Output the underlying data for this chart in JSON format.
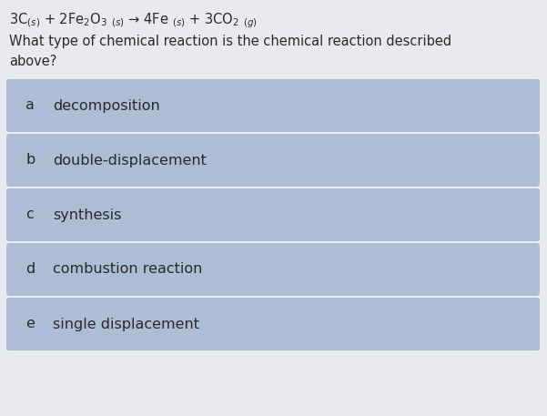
{
  "background_color": "#e8eaed",
  "question_line1": "3C$_{(s)}$ + 2Fe$_2$O$_3$ $_{(s)}$ → 4Fe $_{(s)}$ + 3CO$_2$ $_{(g)}$",
  "question_line2": "What type of chemical reaction is the chemical reaction described",
  "question_line3": "above?",
  "options": [
    {
      "label": "a",
      "text": "decomposition"
    },
    {
      "label": "b",
      "text": "double-displacement"
    },
    {
      "label": "c",
      "text": "synthesis"
    },
    {
      "label": "d",
      "text": "combustion reaction"
    },
    {
      "label": "e",
      "text": "single displacement"
    }
  ],
  "box_color": "#adbdd6",
  "box_edge_color": "#adbdd6",
  "text_color": "#2a2a2a",
  "label_color": "#2a2a2a",
  "question_fontsize": 10.5,
  "option_fontsize": 11.5,
  "label_fontsize": 11.5,
  "fig_width": 6.01,
  "fig_height": 4.57,
  "dpi": 100
}
